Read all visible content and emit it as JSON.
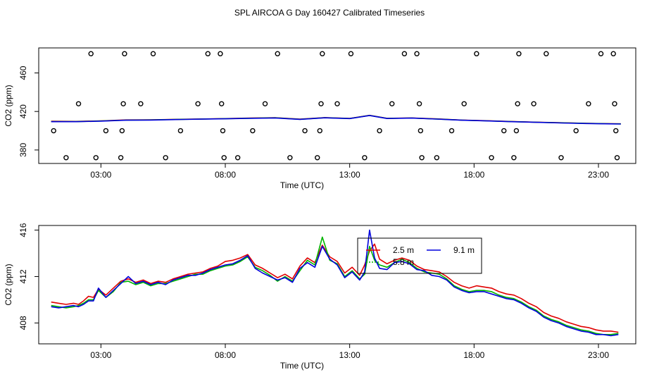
{
  "title": "SPL AIRCOA G  Day 160427  Calibrated Timeseries",
  "colors": {
    "red": "#e00000",
    "green": "#00b400",
    "blue": "#0000dd",
    "axis": "#000000"
  },
  "chart_data": [
    {
      "type": "scatter",
      "xlabel": "Time (UTC)",
      "ylabel": "CO2 (ppm)",
      "xlim": [
        0.5,
        24.5
      ],
      "ylim": [
        366,
        486
      ],
      "x_ticks": [
        3,
        8,
        13,
        18,
        23
      ],
      "x_tick_labels": [
        "03:00",
        "08:00",
        "13:00",
        "18:00",
        "23:00"
      ],
      "y_ticks": [
        380,
        420,
        460
      ],
      "y_tick_labels": [
        "380",
        "420",
        "460"
      ],
      "flags": {
        "levels": [
          372,
          400,
          428,
          480
        ],
        "points": [
          [
            1.6,
            372
          ],
          [
            1.1,
            400
          ],
          [
            2.1,
            428
          ],
          [
            2.6,
            480
          ],
          [
            2.8,
            372
          ],
          [
            3.2,
            400
          ],
          [
            3.8,
            372
          ],
          [
            3.85,
            400
          ],
          [
            3.9,
            428
          ],
          [
            3.95,
            480
          ],
          [
            4.6,
            428
          ],
          [
            5.1,
            480
          ],
          [
            5.6,
            372
          ],
          [
            6.2,
            400
          ],
          [
            6.9,
            428
          ],
          [
            7.3,
            480
          ],
          [
            7.8,
            480
          ],
          [
            7.85,
            428
          ],
          [
            7.9,
            400
          ],
          [
            7.95,
            372
          ],
          [
            8.5,
            372
          ],
          [
            9.1,
            400
          ],
          [
            9.6,
            428
          ],
          [
            10.1,
            480
          ],
          [
            10.6,
            372
          ],
          [
            11.2,
            400
          ],
          [
            11.7,
            372
          ],
          [
            11.8,
            400
          ],
          [
            11.85,
            428
          ],
          [
            11.9,
            480
          ],
          [
            12.5,
            428
          ],
          [
            13.05,
            480
          ],
          [
            13.6,
            372
          ],
          [
            14.2,
            400
          ],
          [
            14.7,
            428
          ],
          [
            15.2,
            480
          ],
          [
            15.7,
            480
          ],
          [
            15.8,
            428
          ],
          [
            15.85,
            400
          ],
          [
            15.9,
            372
          ],
          [
            16.5,
            372
          ],
          [
            17.1,
            400
          ],
          [
            17.6,
            428
          ],
          [
            18.1,
            480
          ],
          [
            18.7,
            372
          ],
          [
            19.2,
            400
          ],
          [
            19.6,
            372
          ],
          [
            19.7,
            400
          ],
          [
            19.75,
            428
          ],
          [
            19.8,
            480
          ],
          [
            20.4,
            428
          ],
          [
            20.9,
            480
          ],
          [
            21.5,
            372
          ],
          [
            22.1,
            400
          ],
          [
            22.6,
            428
          ],
          [
            23.1,
            480
          ],
          [
            23.6,
            480
          ],
          [
            23.65,
            428
          ],
          [
            23.7,
            400
          ],
          [
            23.75,
            372
          ]
        ]
      },
      "series": [
        {
          "name": "2.5 m",
          "color": "red",
          "x": [
            1,
            2,
            3,
            4,
            5,
            6,
            7,
            8,
            9,
            10,
            11,
            12,
            13,
            13.8,
            14.5,
            15.5,
            16.5,
            17.5,
            18.5,
            19.5,
            20.5,
            21.5,
            22.5,
            23.5,
            23.9
          ],
          "values": [
            409.8,
            409.7,
            410.3,
            411.2,
            411.4,
            411.8,
            412.2,
            412.6,
            413.1,
            413.5,
            412.0,
            413.6,
            412.8,
            416.0,
            412.9,
            413.3,
            412.3,
            411.1,
            410.4,
            409.6,
            408.9,
            408.3,
            407.7,
            407.3,
            407.2
          ]
        },
        {
          "name": "5.8 m",
          "color": "green",
          "x": [
            1,
            2,
            3,
            4,
            5,
            6,
            7,
            8,
            9,
            10,
            11,
            12,
            13,
            13.8,
            14.5,
            15.5,
            16.5,
            17.5,
            18.5,
            19.5,
            20.5,
            21.5,
            22.5,
            23.5,
            23.9
          ],
          "values": [
            409.5,
            409.5,
            410.1,
            411.0,
            411.2,
            411.7,
            412.1,
            412.5,
            413.0,
            413.4,
            411.9,
            413.5,
            412.7,
            415.9,
            412.8,
            413.2,
            412.2,
            411.0,
            410.3,
            409.5,
            408.8,
            408.2,
            407.6,
            407.2,
            407.1
          ]
        },
        {
          "name": "9.1 m",
          "color": "blue",
          "x": [
            1,
            2,
            3,
            4,
            5,
            6,
            7,
            8,
            9,
            10,
            11,
            12,
            13,
            13.8,
            14.5,
            15.5,
            16.5,
            17.5,
            18.5,
            19.5,
            20.5,
            21.5,
            22.5,
            23.5,
            23.9
          ],
          "values": [
            409.4,
            409.4,
            410.0,
            410.9,
            411.1,
            411.6,
            412.0,
            412.4,
            412.9,
            413.3,
            411.8,
            413.4,
            412.6,
            415.8,
            412.7,
            413.1,
            412.1,
            410.9,
            410.2,
            409.4,
            408.7,
            408.1,
            407.5,
            407.1,
            407.0
          ]
        }
      ]
    },
    {
      "type": "line",
      "xlabel": "Time (UTC)",
      "ylabel": "CO2 (ppm)",
      "xlim": [
        0.5,
        24.5
      ],
      "ylim": [
        406.2,
        416.4
      ],
      "x_ticks": [
        3,
        8,
        13,
        18,
        23
      ],
      "x_tick_labels": [
        "03:00",
        "08:00",
        "13:00",
        "18:00",
        "23:00"
      ],
      "y_ticks": [
        408,
        412,
        416
      ],
      "y_tick_labels": [
        "408",
        "412",
        "416"
      ],
      "legend": {
        "position": "top-center",
        "entries": [
          {
            "label": "2.5 m",
            "color": "red",
            "dash": "solid"
          },
          {
            "label": "9.1 m",
            "color": "blue",
            "dash": "solid"
          },
          {
            "label": "5.8 m",
            "color": "green",
            "dash": "dotted"
          }
        ]
      },
      "series": [
        {
          "name": "2.5 m",
          "color": "red",
          "x": [
            1,
            1.3,
            1.6,
            1.9,
            2.1,
            2.3,
            2.5,
            2.7,
            2.9,
            3.2,
            3.5,
            3.8,
            4.1,
            4.4,
            4.7,
            5.0,
            5.3,
            5.6,
            5.9,
            6.2,
            6.5,
            6.8,
            7.1,
            7.4,
            7.7,
            8.0,
            8.3,
            8.6,
            8.9,
            9.2,
            9.5,
            9.8,
            10.1,
            10.4,
            10.7,
            11.0,
            11.3,
            11.6,
            11.9,
            12.2,
            12.5,
            12.8,
            13.1,
            13.4,
            13.6,
            13.8,
            14.0,
            14.2,
            14.5,
            14.8,
            15.1,
            15.4,
            15.7,
            16.0,
            16.3,
            16.6,
            16.9,
            17.2,
            17.5,
            17.8,
            18.1,
            18.4,
            18.7,
            19.0,
            19.3,
            19.6,
            19.9,
            20.2,
            20.5,
            20.8,
            21.1,
            21.4,
            21.7,
            22.0,
            22.3,
            22.6,
            22.9,
            23.2,
            23.5,
            23.8
          ],
          "values": [
            409.8,
            409.7,
            409.6,
            409.7,
            409.6,
            409.9,
            410.3,
            410.2,
            410.9,
            410.4,
            411.0,
            411.6,
            411.8,
            411.5,
            411.7,
            411.4,
            411.6,
            411.5,
            411.8,
            412.0,
            412.2,
            412.3,
            412.4,
            412.7,
            412.9,
            413.3,
            413.4,
            413.6,
            413.9,
            413.0,
            412.7,
            412.3,
            411.9,
            412.2,
            411.8,
            412.9,
            413.6,
            413.2,
            414.7,
            413.7,
            413.3,
            412.3,
            412.8,
            412.1,
            413.0,
            414.2,
            414.8,
            413.5,
            413.1,
            413.4,
            413.6,
            413.4,
            412.9,
            412.6,
            412.5,
            412.4,
            412.0,
            411.5,
            411.2,
            411.0,
            411.2,
            411.1,
            411.0,
            410.7,
            410.5,
            410.4,
            410.1,
            409.7,
            409.4,
            408.9,
            408.6,
            408.4,
            408.1,
            407.9,
            407.7,
            407.6,
            407.4,
            407.3,
            407.3,
            407.2
          ]
        },
        {
          "name": "5.8 m",
          "color": "green",
          "x": [
            1,
            1.3,
            1.6,
            1.9,
            2.1,
            2.3,
            2.5,
            2.7,
            2.9,
            3.2,
            3.5,
            3.8,
            4.1,
            4.4,
            4.7,
            5.0,
            5.3,
            5.6,
            5.9,
            6.2,
            6.5,
            6.8,
            7.1,
            7.4,
            7.7,
            8.0,
            8.3,
            8.6,
            8.9,
            9.2,
            9.5,
            9.8,
            10.1,
            10.4,
            10.7,
            11.0,
            11.3,
            11.6,
            11.9,
            12.2,
            12.5,
            12.8,
            13.1,
            13.4,
            13.6,
            13.8,
            14.0,
            14.2,
            14.5,
            14.8,
            15.1,
            15.4,
            15.7,
            16.0,
            16.3,
            16.6,
            16.9,
            17.2,
            17.5,
            17.8,
            18.1,
            18.4,
            18.7,
            19.0,
            19.3,
            19.6,
            19.9,
            20.2,
            20.5,
            20.8,
            21.1,
            21.4,
            21.7,
            22.0,
            22.3,
            22.6,
            22.9,
            23.2,
            23.5,
            23.8
          ],
          "values": [
            409.5,
            409.4,
            409.3,
            409.4,
            409.5,
            409.7,
            410.0,
            410.0,
            410.8,
            410.2,
            410.7,
            411.5,
            411.6,
            411.3,
            411.5,
            411.2,
            411.4,
            411.4,
            411.6,
            411.8,
            412.0,
            412.2,
            412.2,
            412.5,
            412.7,
            412.9,
            413.0,
            413.3,
            413.7,
            412.8,
            412.5,
            412.1,
            411.6,
            412.0,
            411.6,
            412.5,
            413.4,
            413.0,
            415.4,
            413.4,
            413.1,
            412.0,
            412.5,
            411.8,
            412.2,
            414.6,
            413.4,
            413.0,
            412.8,
            413.2,
            413.5,
            413.2,
            412.7,
            412.4,
            412.3,
            412.2,
            411.8,
            411.2,
            410.9,
            410.7,
            410.8,
            410.8,
            410.7,
            410.4,
            410.2,
            410.1,
            409.8,
            409.4,
            409.1,
            408.6,
            408.3,
            408.1,
            407.8,
            407.6,
            407.4,
            407.3,
            407.1,
            407.0,
            407.0,
            407.1
          ]
        },
        {
          "name": "9.1 m",
          "color": "blue",
          "x": [
            1,
            1.3,
            1.6,
            1.9,
            2.1,
            2.3,
            2.5,
            2.7,
            2.9,
            3.2,
            3.5,
            3.8,
            4.1,
            4.4,
            4.7,
            5.0,
            5.3,
            5.6,
            5.9,
            6.2,
            6.5,
            6.8,
            7.1,
            7.4,
            7.7,
            8.0,
            8.3,
            8.6,
            8.9,
            9.2,
            9.5,
            9.8,
            10.1,
            10.4,
            10.7,
            11.0,
            11.3,
            11.6,
            11.9,
            12.2,
            12.5,
            12.8,
            13.1,
            13.4,
            13.6,
            13.8,
            14.0,
            14.2,
            14.5,
            14.8,
            15.1,
            15.4,
            15.7,
            16.0,
            16.3,
            16.6,
            16.9,
            17.2,
            17.5,
            17.8,
            18.1,
            18.4,
            18.7,
            19.0,
            19.3,
            19.6,
            19.9,
            20.2,
            20.5,
            20.8,
            21.1,
            21.4,
            21.7,
            22.0,
            22.3,
            22.6,
            22.9,
            23.2,
            23.5,
            23.8
          ],
          "values": [
            409.4,
            409.3,
            409.4,
            409.5,
            409.4,
            409.6,
            409.9,
            409.9,
            411.0,
            410.2,
            410.8,
            411.4,
            412.0,
            411.4,
            411.6,
            411.3,
            411.5,
            411.3,
            411.7,
            411.9,
            412.1,
            412.1,
            412.3,
            412.6,
            412.8,
            413.0,
            413.1,
            413.4,
            413.8,
            412.7,
            412.3,
            412.0,
            411.7,
            411.9,
            411.5,
            412.7,
            413.2,
            412.8,
            414.6,
            413.5,
            413.0,
            411.9,
            412.4,
            411.7,
            412.4,
            416.0,
            413.6,
            412.7,
            412.6,
            413.2,
            413.3,
            413.1,
            412.6,
            412.5,
            412.1,
            412.0,
            411.7,
            411.1,
            410.8,
            410.6,
            410.7,
            410.7,
            410.5,
            410.3,
            410.1,
            410.0,
            409.7,
            409.3,
            409.0,
            408.5,
            408.2,
            408.0,
            407.7,
            407.5,
            407.3,
            407.2,
            407.0,
            407.0,
            406.9,
            407.0
          ]
        }
      ]
    }
  ]
}
